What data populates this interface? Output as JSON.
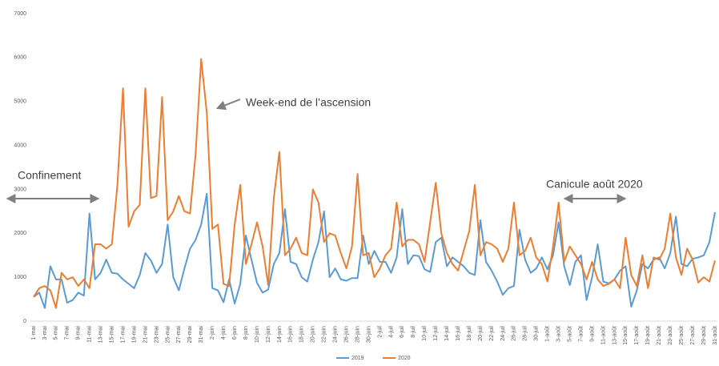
{
  "chart_data": {
    "type": "line",
    "categories": [
      "1-mai",
      null,
      "3-mai",
      null,
      "5-mai",
      null,
      "7-mai",
      null,
      "9-mai",
      null,
      "11-mai",
      null,
      "13-mai",
      null,
      "15-mai",
      null,
      "17-mai",
      null,
      "19-mai",
      null,
      "21-mai",
      null,
      "23-mai",
      null,
      "25-mai",
      null,
      "27-mai",
      null,
      "29-mai",
      null,
      "31-mai",
      null,
      "2-juin",
      null,
      "4-juin",
      null,
      "6-juin",
      null,
      "8-juin",
      null,
      "10-juin",
      null,
      "12-juin",
      null,
      "14-juin",
      null,
      "16-juin",
      null,
      "18-juin",
      null,
      "20-juin",
      null,
      "22-juin",
      null,
      "24-juin",
      null,
      "26-juin",
      null,
      "28-juin",
      null,
      "30-juin",
      null,
      "2-juil",
      null,
      "4-juil",
      null,
      "6-juil",
      null,
      "8-juil",
      null,
      "10-juil",
      null,
      "12-juil",
      null,
      "14-juil",
      null,
      "16-juil",
      null,
      "18-juil",
      null,
      "20-juil",
      null,
      "22-juil",
      null,
      "24-juil",
      null,
      "26-juil",
      null,
      "28-juil",
      null,
      "30-juil",
      null,
      "1-août",
      null,
      "3-août",
      null,
      "5-août",
      null,
      "7-août",
      null,
      "9-août",
      null,
      "11-août",
      null,
      "13-août",
      null,
      "15-août",
      null,
      "17-août",
      null,
      "19-août",
      null,
      "21-août",
      null,
      "23-août",
      null,
      "25-août",
      null,
      "27-août",
      null,
      "29-août",
      null,
      "31-août"
    ],
    "series": [
      {
        "name": "2019",
        "color": "#5b9bd5",
        "values": [
          550,
          650,
          300,
          1250,
          950,
          950,
          420,
          480,
          650,
          580,
          2450,
          950,
          1100,
          1400,
          1100,
          1080,
          950,
          850,
          750,
          1050,
          1550,
          1380,
          1100,
          1300,
          2200,
          1000,
          700,
          1200,
          1650,
          1850,
          2200,
          2900,
          750,
          700,
          430,
          950,
          400,
          850,
          1950,
          1400,
          870,
          650,
          720,
          1300,
          1550,
          2550,
          1350,
          1300,
          1000,
          900,
          1400,
          1800,
          2500,
          1000,
          1200,
          950,
          920,
          980,
          980,
          1950,
          1300,
          1600,
          1350,
          1350,
          1100,
          1450,
          2550,
          1300,
          1500,
          1480,
          1180,
          1120,
          1800,
          1900,
          1250,
          1450,
          1350,
          1250,
          1100,
          1050,
          2300,
          1350,
          1150,
          900,
          600,
          750,
          800,
          2080,
          1400,
          1100,
          1200,
          1450,
          1180,
          1500,
          2250,
          1250,
          820,
          1350,
          1500,
          480,
          1000,
          1750,
          900,
          860,
          950,
          1150,
          1250,
          330,
          700,
          1300,
          1200,
          1400,
          1450,
          1200,
          1550,
          2380,
          1300,
          1250,
          1420,
          1450,
          1500,
          1800,
          2480
        ]
      },
      {
        "name": "2020",
        "color": "#ed7d31",
        "values": [
          550,
          750,
          800,
          700,
          300,
          1100,
          950,
          1000,
          800,
          950,
          750,
          1750,
          1750,
          1650,
          1750,
          3100,
          5300,
          2150,
          2500,
          2650,
          5300,
          2800,
          2850,
          5100,
          2300,
          2500,
          2850,
          2500,
          2450,
          3800,
          5970,
          4750,
          2100,
          2200,
          850,
          800,
          2200,
          3100,
          1300,
          1750,
          2250,
          1700,
          820,
          2800,
          3850,
          1500,
          1650,
          1900,
          1550,
          1500,
          3000,
          2700,
          1800,
          2000,
          1950,
          1550,
          1200,
          1700,
          3350,
          1500,
          1550,
          1000,
          1200,
          1500,
          1650,
          2700,
          1700,
          1850,
          1850,
          1750,
          1350,
          2250,
          3150,
          2000,
          1550,
          1300,
          1150,
          1600,
          2050,
          3100,
          1500,
          1800,
          1750,
          1650,
          1350,
          1650,
          2700,
          1500,
          1600,
          1900,
          1450,
          1300,
          900,
          1700,
          2700,
          1350,
          1700,
          1500,
          1300,
          950,
          1350,
          950,
          800,
          850,
          950,
          750,
          1900,
          1050,
          800,
          1500,
          750,
          1450,
          1400,
          1650,
          2450,
          1450,
          1050,
          1650,
          1400,
          880,
          1000,
          900,
          1380
        ]
      }
    ],
    "ylim": [
      0,
      7000
    ],
    "yticks": [
      0,
      1000,
      2000,
      3000,
      4000,
      5000,
      6000,
      7000
    ],
    "grid": false,
    "legend": "bottom",
    "annotations": [
      "Week-end de l’ascension",
      "Confinement",
      "Canicule août 2020"
    ]
  }
}
